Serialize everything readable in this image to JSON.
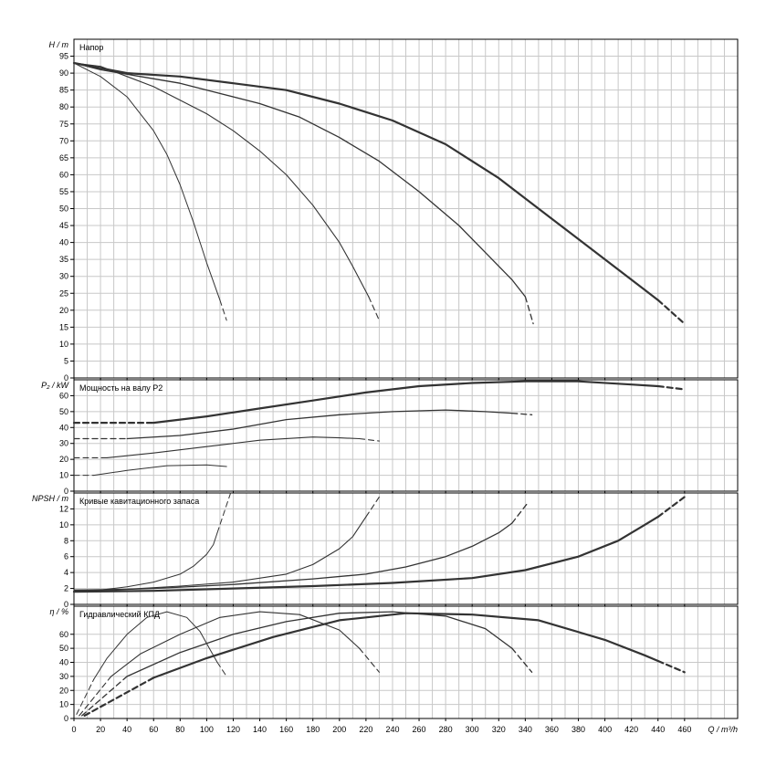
{
  "chart_data": {
    "type": "line",
    "x_axis": {
      "label": "Q / m³/h",
      "range": [
        0,
        500
      ],
      "major_ticks": [
        0,
        20,
        40,
        60,
        80,
        100,
        120,
        140,
        160,
        180,
        200,
        220,
        240,
        260,
        280,
        300,
        320,
        340,
        360,
        380,
        400,
        420,
        440,
        460
      ],
      "minor_step": 10
    },
    "grid": true,
    "panels": [
      {
        "id": "head",
        "ylabel": "H / m",
        "title": "Напор",
        "ylim": [
          0,
          100
        ],
        "major_ticks": [
          0,
          5,
          10,
          15,
          20,
          25,
          30,
          35,
          40,
          45,
          50,
          55,
          60,
          65,
          70,
          75,
          80,
          85,
          90,
          95
        ],
        "series": [
          {
            "weight": 1.0,
            "solid": [
              [
                0,
                93
              ],
              [
                10,
                91
              ],
              [
                20,
                89
              ],
              [
                40,
                83
              ],
              [
                60,
                73
              ],
              [
                70,
                66
              ],
              [
                80,
                57
              ],
              [
                90,
                46
              ],
              [
                100,
                34
              ],
              [
                110,
                23
              ]
            ],
            "dashed": [
              [
                110,
                23
              ],
              [
                115,
                17
              ]
            ]
          },
          {
            "weight": 1.1,
            "solid": [
              [
                0,
                93
              ],
              [
                20,
                92
              ],
              [
                40,
                89
              ],
              [
                60,
                86
              ],
              [
                80,
                82
              ],
              [
                100,
                78
              ],
              [
                120,
                73
              ],
              [
                140,
                67
              ],
              [
                160,
                60
              ],
              [
                180,
                51
              ],
              [
                200,
                40
              ],
              [
                210,
                33
              ],
              [
                222,
                24
              ]
            ],
            "dashed": [
              [
                222,
                24
              ],
              [
                230,
                17
              ]
            ]
          },
          {
            "weight": 1.3,
            "solid": [
              [
                0,
                93
              ],
              [
                20,
                91
              ],
              [
                50,
                89
              ],
              [
                80,
                87
              ],
              [
                110,
                84
              ],
              [
                140,
                81
              ],
              [
                170,
                77
              ],
              [
                200,
                71
              ],
              [
                230,
                64
              ],
              [
                260,
                55
              ],
              [
                290,
                45
              ],
              [
                320,
                33
              ],
              [
                330,
                29
              ],
              [
                340,
                24
              ]
            ],
            "dashed": [
              [
                340,
                24
              ],
              [
                346,
                16
              ]
            ]
          },
          {
            "weight": 2.2,
            "solid": [
              [
                0,
                93
              ],
              [
                40,
                90
              ],
              [
                80,
                89
              ],
              [
                120,
                87
              ],
              [
                160,
                85
              ],
              [
                200,
                81
              ],
              [
                240,
                76
              ],
              [
                280,
                69
              ],
              [
                320,
                59
              ],
              [
                360,
                47
              ],
              [
                400,
                35
              ],
              [
                430,
                26
              ],
              [
                440,
                23
              ]
            ],
            "dashed": [
              [
                440,
                23
              ],
              [
                460,
                16
              ]
            ]
          }
        ]
      },
      {
        "id": "power",
        "ylabel": "P₂ / kW",
        "title": "Мощность на валу P2",
        "ylim": [
          0,
          70
        ],
        "major_ticks": [
          0,
          10,
          20,
          30,
          40,
          50,
          60
        ],
        "series": [
          {
            "weight": 1.0,
            "dashed": [
              [
                0,
                10
              ],
              [
                15,
                10
              ]
            ],
            "solid": [
              [
                15,
                10
              ],
              [
                40,
                13
              ],
              [
                70,
                16
              ],
              [
                100,
                16.5
              ],
              [
                115,
                15.5
              ]
            ]
          },
          {
            "weight": 1.1,
            "dashed": [
              [
                0,
                21
              ],
              [
                25,
                21
              ]
            ],
            "solid": [
              [
                25,
                21
              ],
              [
                60,
                24
              ],
              [
                100,
                28
              ],
              [
                140,
                32
              ],
              [
                180,
                34
              ],
              [
                200,
                33.5
              ],
              [
                215,
                33
              ]
            ],
            "dashed2": [
              [
                215,
                33
              ],
              [
                230,
                31.5
              ]
            ]
          },
          {
            "weight": 1.3,
            "dashed": [
              [
                0,
                33
              ],
              [
                40,
                33
              ]
            ],
            "solid": [
              [
                40,
                33
              ],
              [
                80,
                35
              ],
              [
                120,
                39
              ],
              [
                160,
                45
              ],
              [
                200,
                48
              ],
              [
                240,
                50
              ],
              [
                280,
                51
              ],
              [
                310,
                50
              ],
              [
                330,
                49
              ]
            ],
            "dashed2": [
              [
                330,
                49
              ],
              [
                345,
                48
              ]
            ]
          },
          {
            "weight": 2.2,
            "dashed": [
              [
                0,
                43
              ],
              [
                60,
                43
              ]
            ],
            "solid": [
              [
                60,
                43
              ],
              [
                100,
                47
              ],
              [
                140,
                52
              ],
              [
                180,
                57
              ],
              [
                220,
                62
              ],
              [
                260,
                66
              ],
              [
                300,
                68
              ],
              [
                340,
                69
              ],
              [
                380,
                69
              ],
              [
                420,
                67
              ],
              [
                440,
                66
              ]
            ],
            "dashed2": [
              [
                440,
                66
              ],
              [
                460,
                64
              ]
            ]
          }
        ]
      },
      {
        "id": "npsh",
        "ylabel": "NPSH / m",
        "title": "Кривые кавитационного запаса",
        "ylim": [
          0,
          14
        ],
        "major_ticks": [
          0,
          2,
          4,
          6,
          8,
          10,
          12
        ],
        "series": [
          {
            "weight": 1.0,
            "solid": [
              [
                0,
                1.8
              ],
              [
                20,
                1.8
              ],
              [
                40,
                2.2
              ],
              [
                60,
                2.8
              ],
              [
                80,
                3.8
              ],
              [
                90,
                4.8
              ],
              [
                100,
                6.3
              ],
              [
                105,
                7.5
              ],
              [
                108,
                9
              ]
            ],
            "dashed": [
              [
                108,
                9
              ],
              [
                118,
                14
              ]
            ]
          },
          {
            "weight": 1.1,
            "solid": [
              [
                0,
                1.8
              ],
              [
                40,
                1.9
              ],
              [
                80,
                2.3
              ],
              [
                120,
                2.8
              ],
              [
                160,
                3.8
              ],
              [
                180,
                5
              ],
              [
                200,
                7
              ],
              [
                210,
                8.5
              ],
              [
                220,
                11
              ]
            ],
            "dashed": [
              [
                220,
                11
              ],
              [
                230,
                13.5
              ]
            ]
          },
          {
            "weight": 1.3,
            "solid": [
              [
                0,
                1.7
              ],
              [
                60,
                2
              ],
              [
                120,
                2.5
              ],
              [
                180,
                3.2
              ],
              [
                220,
                3.8
              ],
              [
                250,
                4.7
              ],
              [
                280,
                6
              ],
              [
                300,
                7.3
              ],
              [
                320,
                9
              ],
              [
                330,
                10.2
              ]
            ],
            "dashed": [
              [
                330,
                10.2
              ],
              [
                342,
                12.8
              ]
            ]
          },
          {
            "weight": 2.2,
            "solid": [
              [
                0,
                1.6
              ],
              [
                60,
                1.7
              ],
              [
                120,
                2
              ],
              [
                180,
                2.3
              ],
              [
                240,
                2.7
              ],
              [
                300,
                3.3
              ],
              [
                340,
                4.3
              ],
              [
                380,
                6
              ],
              [
                410,
                8
              ],
              [
                430,
                10
              ],
              [
                440,
                11
              ]
            ],
            "dashed": [
              [
                440,
                11
              ],
              [
                460,
                13.5
              ]
            ]
          }
        ]
      },
      {
        "id": "eff",
        "ylabel": "η / %",
        "title": "Гидравлический КПД",
        "ylim": [
          0,
          80
        ],
        "major_ticks": [
          0,
          10,
          20,
          30,
          40,
          50,
          60
        ],
        "series": [
          {
            "weight": 1.0,
            "dashed": [
              [
                2,
                3
              ],
              [
                15,
                28
              ]
            ],
            "solid": [
              [
                15,
                28
              ],
              [
                25,
                43
              ],
              [
                40,
                60
              ],
              [
                55,
                72
              ],
              [
                70,
                76
              ],
              [
                85,
                72
              ],
              [
                95,
                62
              ],
              [
                102,
                50
              ],
              [
                108,
                40
              ]
            ],
            "dashed2": [
              [
                108,
                40
              ],
              [
                115,
                30
              ]
            ]
          },
          {
            "weight": 1.1,
            "dashed": [
              [
                4,
                2
              ],
              [
                28,
                30
              ]
            ],
            "solid": [
              [
                28,
                30
              ],
              [
                50,
                46
              ],
              [
                80,
                60
              ],
              [
                110,
                72
              ],
              [
                140,
                76
              ],
              [
                170,
                74
              ],
              [
                200,
                63
              ],
              [
                215,
                50
              ]
            ],
            "dashed2": [
              [
                215,
                50
              ],
              [
                230,
                33
              ]
            ]
          },
          {
            "weight": 1.3,
            "dashed": [
              [
                6,
                2
              ],
              [
                40,
                30
              ]
            ],
            "solid": [
              [
                40,
                30
              ],
              [
                80,
                47
              ],
              [
                120,
                60
              ],
              [
                160,
                69
              ],
              [
                200,
                75
              ],
              [
                240,
                76
              ],
              [
                280,
                73
              ],
              [
                310,
                64
              ],
              [
                330,
                50
              ]
            ],
            "dashed2": [
              [
                330,
                50
              ],
              [
                345,
                33
              ]
            ]
          },
          {
            "weight": 2.2,
            "dashed": [
              [
                8,
                2
              ],
              [
                60,
                29
              ]
            ],
            "solid": [
              [
                60,
                29
              ],
              [
                100,
                43
              ],
              [
                150,
                58
              ],
              [
                200,
                70
              ],
              [
                250,
                75
              ],
              [
                300,
                74
              ],
              [
                350,
                70
              ],
              [
                400,
                56
              ],
              [
                430,
                45
              ],
              [
                440,
                41
              ]
            ],
            "dashed2": [
              [
                440,
                41
              ],
              [
                460,
                33
              ]
            ]
          }
        ]
      }
    ]
  }
}
